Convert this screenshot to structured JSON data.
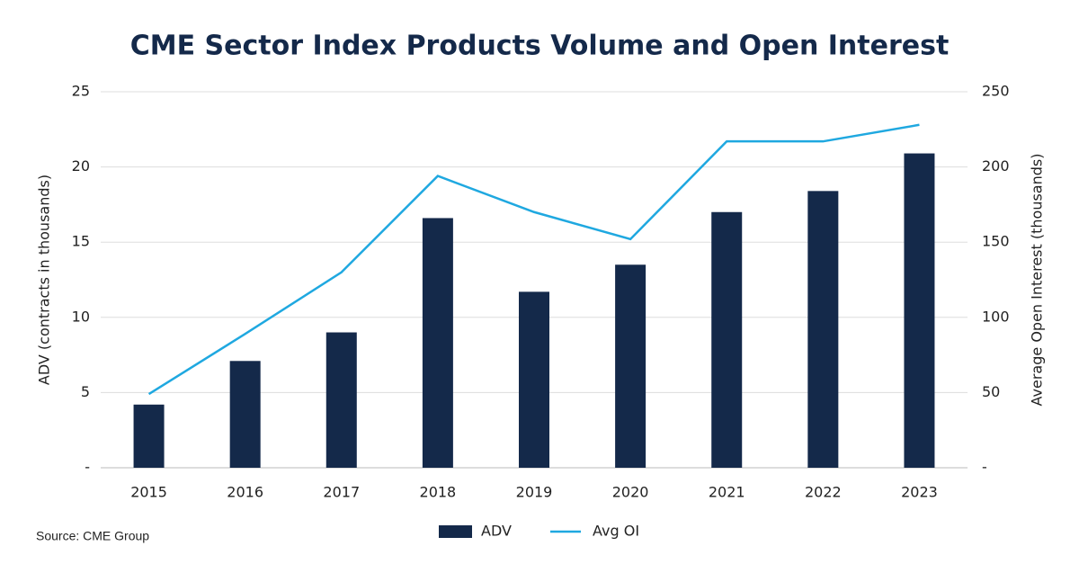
{
  "chart_data": {
    "type": "bar-line",
    "title": "CME Sector Index Products Volume and Open Interest",
    "categories": [
      "2015",
      "2016",
      "2017",
      "2018",
      "2019",
      "2020",
      "2021",
      "2022",
      "2023"
    ],
    "series": [
      {
        "name": "ADV",
        "type": "bar",
        "color": "#14294a",
        "values": [
          4.2,
          7.1,
          9.0,
          16.6,
          11.7,
          13.5,
          17.0,
          18.4,
          20.9
        ]
      },
      {
        "name": "Avg OI",
        "type": "line",
        "axis": "y2",
        "color": "#1fa8e0",
        "values": [
          49,
          89,
          130,
          194,
          170,
          152,
          217,
          217,
          228
        ]
      }
    ],
    "ylabel": "ADV (contracts in thousands)",
    "y2label": "Average Open Interest (thousands)",
    "ylim": [
      0,
      25
    ],
    "yticks": [
      {
        "value": 0,
        "label": "-"
      },
      5,
      10,
      15,
      20,
      25
    ],
    "y2lim": [
      0,
      250
    ],
    "y2ticks": [
      {
        "value": 0,
        "label": "-"
      },
      50,
      100,
      150,
      200,
      250
    ],
    "grid": true,
    "legend": "bottom",
    "source": "Source: CME Group"
  }
}
